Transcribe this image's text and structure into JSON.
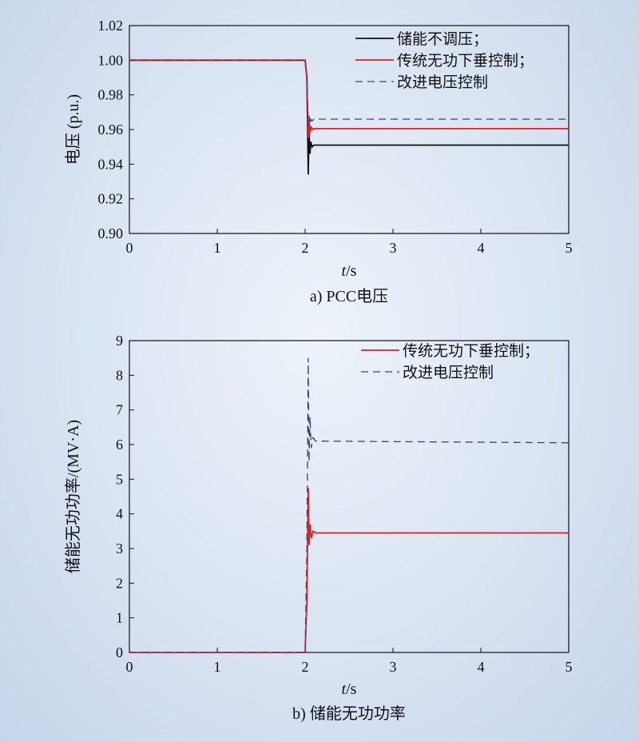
{
  "chart_data": [
    {
      "type": "line",
      "caption": "a) PCC电压",
      "xlabel_italic": "t",
      "xlabel_unit": "/s",
      "ylabel": "电压 (p.u.)",
      "xlim": [
        0,
        5
      ],
      "ylim": [
        0.9,
        1.02
      ],
      "xticks": [
        "0",
        "1",
        "2",
        "3",
        "4",
        "5"
      ],
      "yticks": [
        "0.90",
        "0.92",
        "0.94",
        "0.96",
        "0.98",
        "1.00",
        "1.02"
      ],
      "legend_position": "top-right",
      "series": [
        {
          "name": "储能不调压；",
          "color": "#111111",
          "style": "solid",
          "x": [
            0,
            2.0,
            2.02,
            2.035,
            2.045,
            2.055,
            2.065,
            2.08,
            2.1,
            2.15,
            5.0
          ],
          "y": [
            1.0,
            1.0,
            0.99,
            0.934,
            0.958,
            0.946,
            0.953,
            0.95,
            0.951,
            0.951,
            0.951
          ]
        },
        {
          "name": "传统无功下垂控制；",
          "color": "#e02020",
          "style": "solid",
          "x": [
            0,
            2.0,
            2.02,
            2.035,
            2.045,
            2.055,
            2.065,
            2.08,
            2.1,
            2.15,
            5.0
          ],
          "y": [
            1.0,
            1.0,
            0.99,
            0.955,
            0.966,
            0.958,
            0.962,
            0.96,
            0.9605,
            0.9605,
            0.9605
          ]
        },
        {
          "name": "改进电压控制",
          "color": "#3a4270",
          "style": "dashed",
          "x": [
            0,
            2.0,
            2.02,
            2.035,
            2.045,
            2.055,
            2.065,
            2.08,
            2.1,
            2.15,
            5.0
          ],
          "y": [
            1.0,
            1.0,
            0.99,
            0.962,
            0.968,
            0.963,
            0.966,
            0.965,
            0.966,
            0.966,
            0.966
          ]
        }
      ]
    },
    {
      "type": "line",
      "caption": "b) 储能无功功率",
      "xlabel_italic": "t",
      "xlabel_unit": "/s",
      "ylabel": "储能无功功率/(MV·A)",
      "xlim": [
        0,
        5
      ],
      "ylim": [
        0,
        9
      ],
      "xticks": [
        "0",
        "1",
        "2",
        "3",
        "4",
        "5"
      ],
      "yticks": [
        "0",
        "1",
        "2",
        "3",
        "4",
        "5",
        "6",
        "7",
        "8",
        "9"
      ],
      "legend_position": "top-right",
      "series": [
        {
          "name": "传统无功下垂控制；",
          "color": "#e02020",
          "style": "solid",
          "x": [
            0,
            2.0,
            2.02,
            2.035,
            2.045,
            2.055,
            2.07,
            2.09,
            2.12,
            2.2,
            5.0
          ],
          "y": [
            0,
            0,
            1.5,
            4.75,
            3.1,
            3.7,
            3.3,
            3.5,
            3.45,
            3.45,
            3.45
          ]
        },
        {
          "name": "改进电压控制",
          "color": "#3a4270",
          "style": "dashed",
          "x": [
            0,
            2.0,
            2.02,
            2.035,
            2.045,
            2.055,
            2.07,
            2.09,
            2.12,
            2.2,
            5.0
          ],
          "y": [
            0,
            0,
            3.0,
            8.5,
            5.5,
            6.8,
            5.9,
            6.2,
            6.1,
            6.1,
            6.05
          ]
        }
      ]
    }
  ]
}
